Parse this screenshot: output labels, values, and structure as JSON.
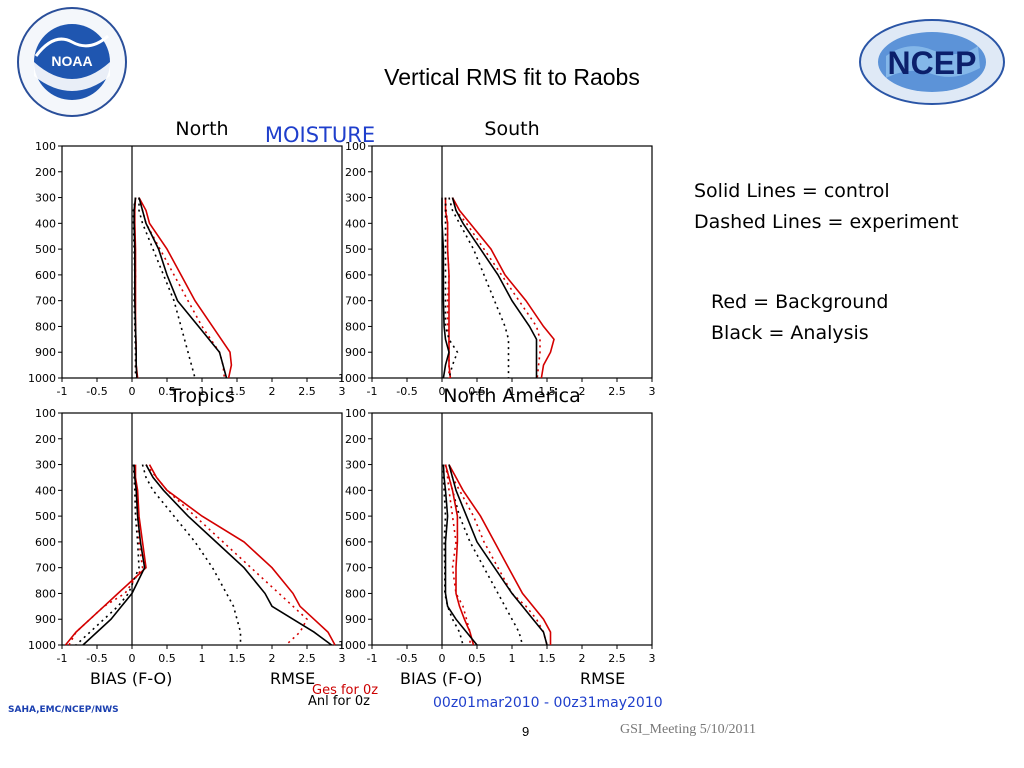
{
  "title": "Vertical RMS fit to Raobs",
  "moisture_label": "MOISTURE",
  "legend": {
    "line_styles": [
      "Solid Lines = control",
      "Dashed Lines = experiment"
    ],
    "colors": [
      "Red = Background",
      "Black = Analysis"
    ]
  },
  "figure": {
    "bias_label": "BIAS (F-O)",
    "rmse_label": "RMSE",
    "ges_label": "Ges for 0z",
    "anl_label": "Anl for 0z",
    "date_range": "00z01mar2010 - 00z31may2010",
    "credit": "SAHA,EMC/NCEP/NWS"
  },
  "footer": {
    "page_number": "9",
    "meeting": "GSI_Meeting 5/10/2011"
  },
  "logos": {
    "noaa": "NOAA",
    "ncep": "NCEP"
  },
  "colors": {
    "background": "#cc0000",
    "analysis": "#000000",
    "moisture": "#1f3fcc",
    "date": "#1f3fcc"
  },
  "chart_data": [
    {
      "type": "line",
      "title": "North",
      "x_ticks": [
        "-1",
        "-0.5",
        "0",
        "0.5",
        "1",
        "1.5",
        "2",
        "2.5",
        "3"
      ],
      "y_ticks": [
        "100",
        "200",
        "300",
        "400",
        "500",
        "600",
        "700",
        "800",
        "900",
        "1000"
      ],
      "xlim": [
        -1,
        3
      ],
      "ylim": [
        100,
        1000
      ],
      "y_inverted": true,
      "y": [
        300,
        350,
        400,
        500,
        600,
        700,
        800,
        900,
        950,
        1000
      ],
      "series": [
        {
          "color": "red",
          "style": "solid",
          "values": [
            0.1,
            0.2,
            0.25,
            0.5,
            0.7,
            0.9,
            1.15,
            1.4,
            1.42,
            1.38
          ]
        },
        {
          "color": "red",
          "style": "dotted",
          "values": [
            0.1,
            0.15,
            0.2,
            0.4,
            0.6,
            0.8,
            1.0,
            1.25,
            1.3,
            1.32
          ]
        },
        {
          "color": "black",
          "style": "solid",
          "values": [
            0.1,
            0.15,
            0.2,
            0.38,
            0.5,
            0.65,
            0.95,
            1.25,
            1.3,
            1.35
          ]
        },
        {
          "color": "black",
          "style": "dotted",
          "values": [
            0.1,
            0.1,
            0.15,
            0.3,
            0.45,
            0.6,
            0.7,
            0.8,
            0.85,
            0.9
          ]
        },
        {
          "color": "red",
          "style": "solid",
          "values": [
            0.05,
            0.04,
            0.04,
            0.05,
            0.05,
            0.05,
            0.05,
            0.06,
            0.06,
            0.08
          ]
        },
        {
          "color": "red",
          "style": "dotted",
          "values": [
            0.05,
            0.03,
            0.03,
            0.04,
            0.05,
            0.04,
            0.05,
            0.06,
            0.05,
            0.06
          ]
        },
        {
          "color": "black",
          "style": "solid",
          "values": [
            0.05,
            0.03,
            0.03,
            0.04,
            0.04,
            0.04,
            0.05,
            0.06,
            0.06,
            0.07
          ]
        },
        {
          "color": "black",
          "style": "dotted",
          "values": [
            0.05,
            0.02,
            0.02,
            0.03,
            0.04,
            0.03,
            0.04,
            0.05,
            0.05,
            0.05
          ]
        }
      ]
    },
    {
      "type": "line",
      "title": "South",
      "x_ticks": [
        "-1",
        "-0.5",
        "0",
        "0.5",
        "1",
        "1.5",
        "2",
        "2.5",
        "3"
      ],
      "y_ticks": [
        "100",
        "200",
        "300",
        "400",
        "500",
        "600",
        "700",
        "800",
        "900",
        "1000"
      ],
      "xlim": [
        -1,
        3
      ],
      "ylim": [
        100,
        1000
      ],
      "y_inverted": true,
      "y": [
        300,
        350,
        400,
        500,
        600,
        700,
        800,
        850,
        900,
        950,
        1000
      ],
      "series": [
        {
          "color": "red",
          "style": "solid",
          "values": [
            0.15,
            0.25,
            0.4,
            0.7,
            0.9,
            1.2,
            1.45,
            1.6,
            1.55,
            1.45,
            1.42
          ]
        },
        {
          "color": "red",
          "style": "dotted",
          "values": [
            0.15,
            0.2,
            0.35,
            0.6,
            0.85,
            1.1,
            1.35,
            1.4,
            1.4,
            1.38,
            1.36
          ]
        },
        {
          "color": "black",
          "style": "solid",
          "values": [
            0.15,
            0.2,
            0.3,
            0.55,
            0.8,
            1.0,
            1.25,
            1.35,
            1.35,
            1.35,
            1.35
          ]
        },
        {
          "color": "black",
          "style": "dotted",
          "values": [
            0.1,
            0.15,
            0.25,
            0.45,
            0.6,
            0.75,
            0.9,
            0.95,
            0.95,
            0.95,
            0.95
          ]
        },
        {
          "color": "red",
          "style": "solid",
          "values": [
            0.05,
            0.05,
            0.08,
            0.08,
            0.1,
            0.1,
            0.1,
            0.1,
            0.1,
            0.1,
            0.12
          ]
        },
        {
          "color": "red",
          "style": "dotted",
          "values": [
            0.05,
            0.06,
            0.08,
            0.08,
            0.1,
            0.08,
            0.08,
            0.1,
            0.1,
            0.1,
            0.1
          ]
        },
        {
          "color": "black",
          "style": "solid",
          "values": [
            0.0,
            0.0,
            0.0,
            0.02,
            0.02,
            0.02,
            0.03,
            0.05,
            0.1,
            0.05,
            0.02
          ]
        },
        {
          "color": "black",
          "style": "dotted",
          "values": [
            0.05,
            0.05,
            0.05,
            0.05,
            0.05,
            0.05,
            0.05,
            0.1,
            0.22,
            0.15,
            0.1
          ]
        }
      ]
    },
    {
      "type": "line",
      "title": "Tropics",
      "x_ticks": [
        "-1",
        "-0.5",
        "0",
        "0.5",
        "1",
        "1.5",
        "2",
        "2.5",
        "3"
      ],
      "y_ticks": [
        "100",
        "200",
        "300",
        "400",
        "500",
        "600",
        "700",
        "800",
        "900",
        "1000"
      ],
      "xlim": [
        -1,
        3
      ],
      "ylim": [
        100,
        1000
      ],
      "y_inverted": true,
      "y": [
        300,
        350,
        400,
        500,
        600,
        700,
        800,
        850,
        900,
        950,
        1000
      ],
      "series": [
        {
          "color": "red",
          "style": "solid",
          "values": [
            0.25,
            0.35,
            0.5,
            1.0,
            1.6,
            2.0,
            2.3,
            2.4,
            2.6,
            2.8,
            2.9
          ]
        },
        {
          "color": "red",
          "style": "dotted",
          "values": [
            0.2,
            0.35,
            0.5,
            0.9,
            1.3,
            1.7,
            2.1,
            2.3,
            2.5,
            2.4,
            2.2
          ]
        },
        {
          "color": "black",
          "style": "solid",
          "values": [
            0.2,
            0.3,
            0.45,
            0.8,
            1.2,
            1.6,
            1.9,
            2.0,
            2.3,
            2.6,
            2.85
          ]
        },
        {
          "color": "black",
          "style": "dotted",
          "values": [
            0.15,
            0.2,
            0.3,
            0.6,
            0.9,
            1.15,
            1.35,
            1.45,
            1.5,
            1.55,
            1.55
          ]
        },
        {
          "color": "red",
          "style": "solid",
          "values": [
            0.05,
            0.05,
            0.08,
            0.1,
            0.15,
            0.2,
            -0.2,
            -0.4,
            -0.6,
            -0.8,
            -0.95
          ]
        },
        {
          "color": "red",
          "style": "dotted",
          "values": [
            0.03,
            0.04,
            0.05,
            0.08,
            0.1,
            0.15,
            -0.1,
            -0.4,
            -0.6,
            -0.8,
            -0.9
          ]
        },
        {
          "color": "black",
          "style": "solid",
          "values": [
            0.03,
            0.04,
            0.06,
            0.08,
            0.12,
            0.18,
            0.0,
            -0.15,
            -0.3,
            -0.5,
            -0.7
          ]
        },
        {
          "color": "black",
          "style": "dotted",
          "values": [
            0.02,
            0.03,
            0.04,
            0.05,
            0.08,
            0.1,
            -0.05,
            -0.2,
            -0.4,
            -0.6,
            -0.8
          ]
        }
      ]
    },
    {
      "type": "line",
      "title": "North America",
      "x_ticks": [
        "-1",
        "-0.5",
        "0",
        "0.5",
        "1",
        "1.5",
        "2",
        "2.5",
        "3"
      ],
      "y_ticks": [
        "100",
        "200",
        "300",
        "400",
        "500",
        "600",
        "700",
        "800",
        "900",
        "1000"
      ],
      "xlim": [
        -1,
        3
      ],
      "ylim": [
        100,
        1000
      ],
      "y_inverted": true,
      "y": [
        300,
        350,
        400,
        500,
        600,
        700,
        800,
        850,
        900,
        950,
        1000
      ],
      "series": [
        {
          "color": "red",
          "style": "solid",
          "values": [
            0.1,
            0.2,
            0.3,
            0.55,
            0.75,
            0.95,
            1.15,
            1.3,
            1.45,
            1.55,
            1.55
          ]
        },
        {
          "color": "red",
          "style": "dotted",
          "values": [
            0.1,
            0.15,
            0.25,
            0.45,
            0.6,
            0.8,
            1.0,
            1.2,
            1.35,
            1.45,
            1.5
          ]
        },
        {
          "color": "black",
          "style": "solid",
          "values": [
            0.1,
            0.15,
            0.2,
            0.35,
            0.5,
            0.75,
            1.0,
            1.15,
            1.3,
            1.45,
            1.5
          ]
        },
        {
          "color": "black",
          "style": "dotted",
          "values": [
            0.05,
            0.1,
            0.15,
            0.25,
            0.4,
            0.6,
            0.8,
            0.9,
            1.0,
            1.1,
            1.15
          ]
        },
        {
          "color": "red",
          "style": "solid",
          "values": [
            0.05,
            0.1,
            0.15,
            0.22,
            0.22,
            0.2,
            0.2,
            0.25,
            0.32,
            0.4,
            0.45
          ]
        },
        {
          "color": "red",
          "style": "dotted",
          "values": [
            0.05,
            0.08,
            0.1,
            0.15,
            0.2,
            0.15,
            0.2,
            0.3,
            0.35,
            0.4,
            0.4
          ]
        },
        {
          "color": "black",
          "style": "solid",
          "values": [
            0.02,
            0.03,
            0.05,
            0.08,
            0.05,
            0.05,
            0.05,
            0.08,
            0.2,
            0.35,
            0.5
          ]
        },
        {
          "color": "black",
          "style": "dotted",
          "values": [
            0.02,
            0.02,
            0.03,
            0.05,
            0.03,
            0.04,
            0.04,
            0.08,
            0.15,
            0.25,
            0.3
          ]
        }
      ]
    }
  ]
}
